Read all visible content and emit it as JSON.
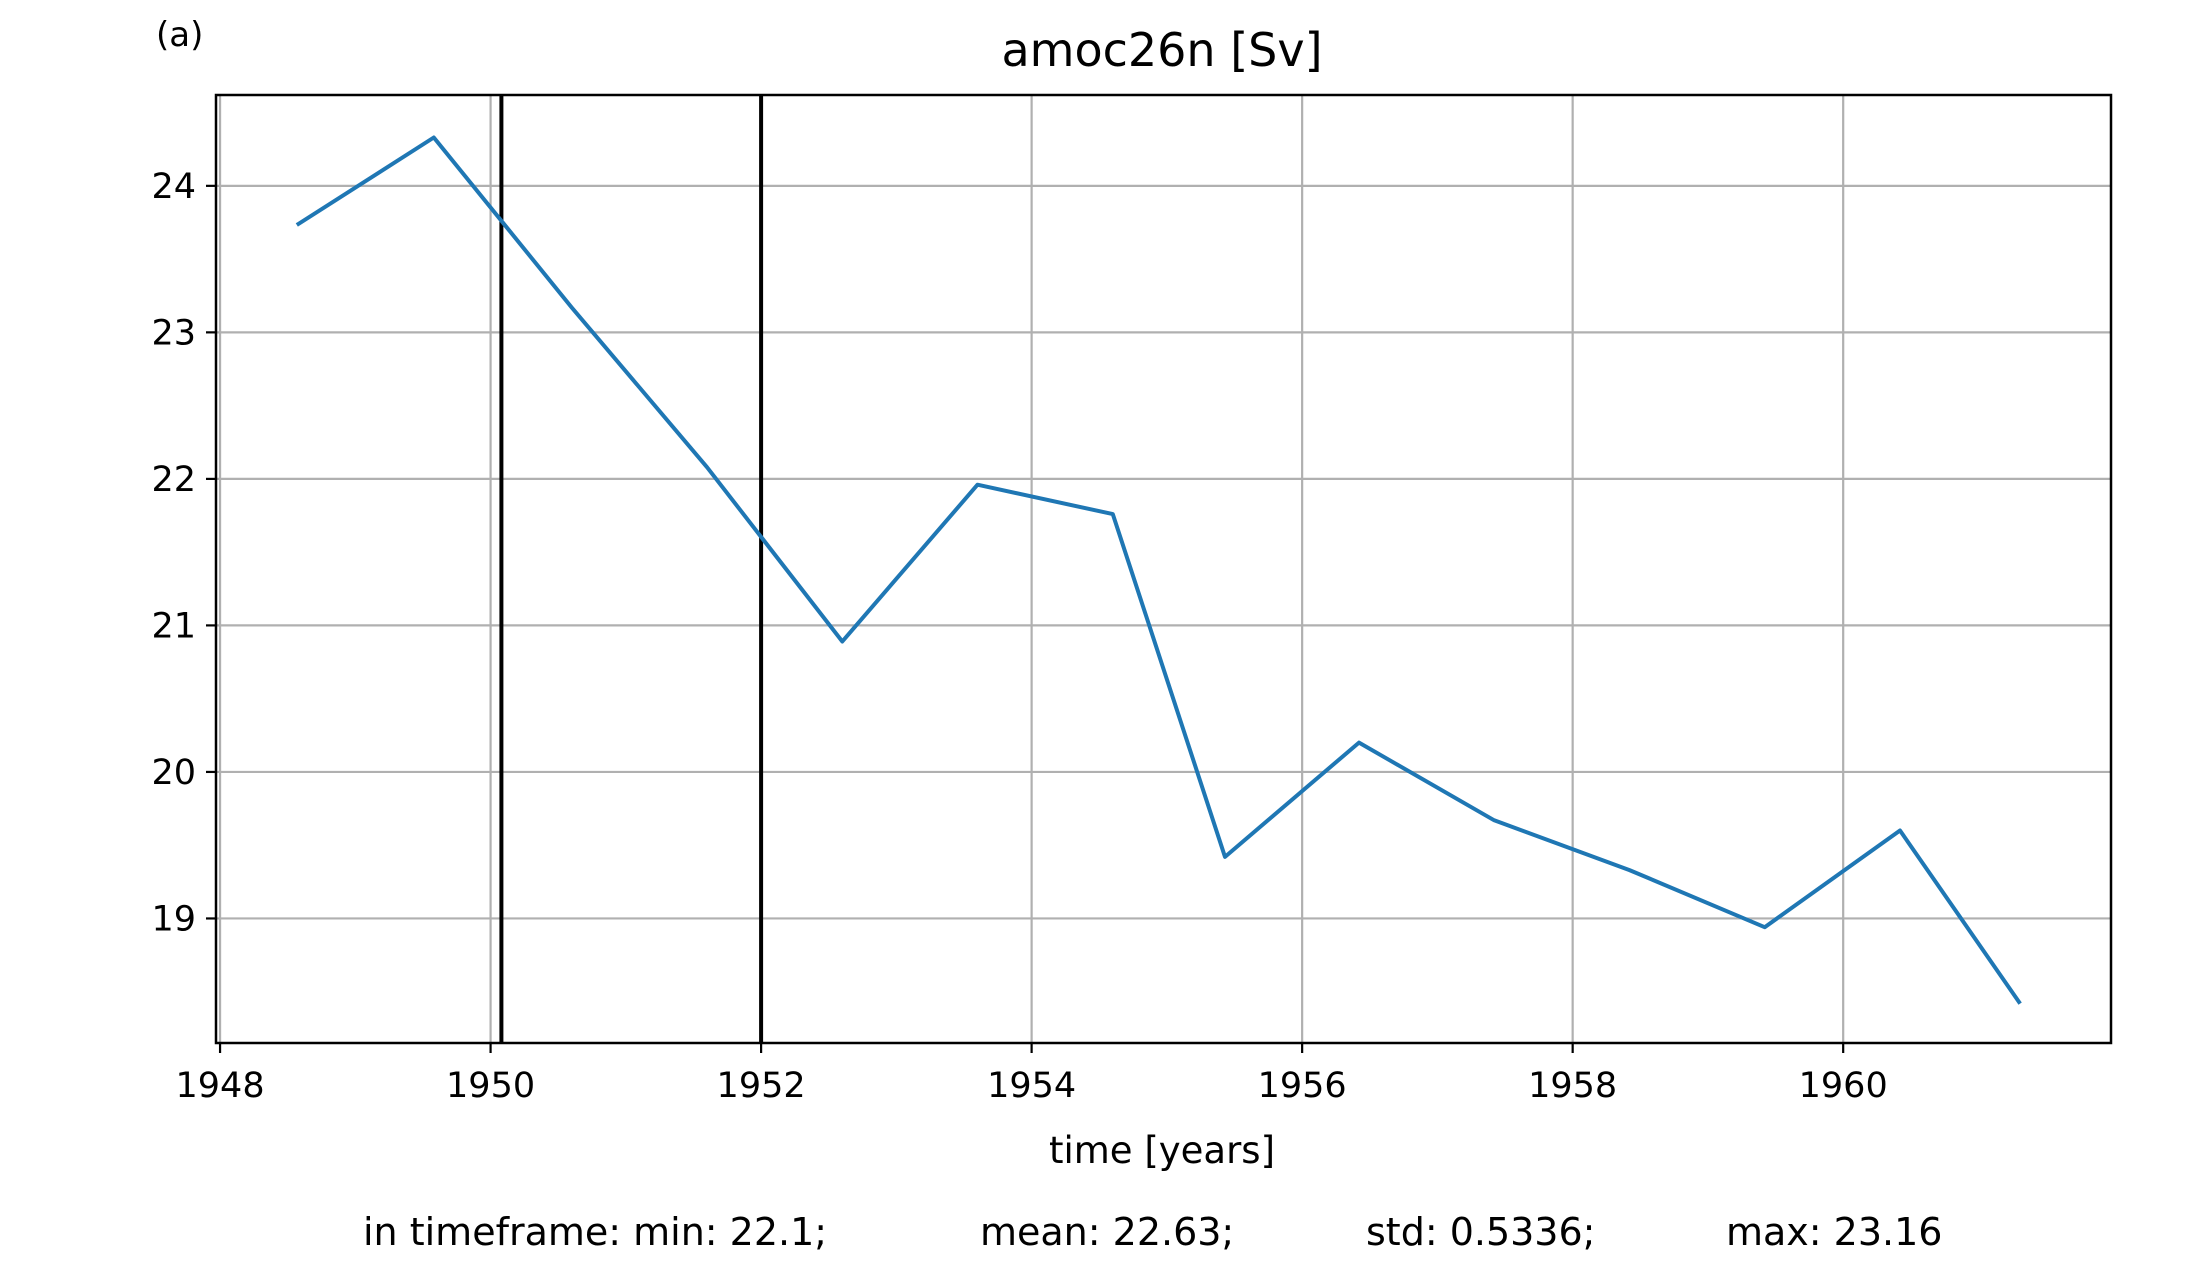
{
  "panel_label": "(a)",
  "chart_data": {
    "type": "line",
    "title": "amoc26n [Sv]",
    "xlabel": "time [years]",
    "ylabel": "",
    "xlim": [
      1947.97,
      1961.98
    ],
    "ylim": [
      18.15,
      24.62
    ],
    "x_ticks": [
      1948,
      1950,
      1952,
      1954,
      1956,
      1958,
      1960
    ],
    "y_ticks": [
      19,
      20,
      21,
      22,
      23,
      24
    ],
    "grid": true,
    "series": [
      {
        "color": "#1f77b4",
        "x": [
          1948.58,
          1949.58,
          1950.6,
          1951.6,
          1952.6,
          1953.6,
          1954.6,
          1955.43,
          1956.42,
          1957.42,
          1958.42,
          1959.42,
          1960.42,
          1961.3
        ],
        "y": [
          23.74,
          24.33,
          23.17,
          22.08,
          20.89,
          21.96,
          21.76,
          19.42,
          20.2,
          19.67,
          19.33,
          18.94,
          19.6,
          18.43
        ]
      }
    ],
    "vertical_lines": [
      {
        "x": 1950.08,
        "color": "#000000"
      },
      {
        "x": 1952.0,
        "color": "#000000"
      }
    ]
  },
  "stats": [
    "in timeframe: min: 22.1;",
    "mean: 22.63;",
    "std: 0.5336;",
    "max: 23.16"
  ]
}
